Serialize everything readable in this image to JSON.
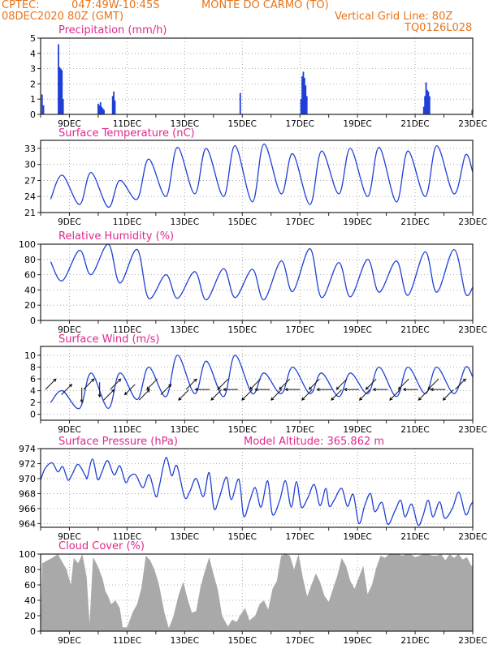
{
  "header": {
    "source": "CPTEC:",
    "coords": "047:49W-10:45S",
    "station": "MONTE DO CARMO (TO)",
    "run": "08DEC2020 80Z (GMT)",
    "grid_note": "Vertical Grid Line: 80Z",
    "code": "TQ0126L028"
  },
  "colors": {
    "header": "#e8741a",
    "titles": "#e0288c",
    "series": "#1f3fd6",
    "cloud": "#a9a9a9",
    "grid": "#999999"
  },
  "x_axis": {
    "day_labels": [
      "9DEC",
      "11DEC",
      "13DEC",
      "15DEC",
      "17DEC",
      "19DEC",
      "21DEC",
      "23DEC"
    ]
  },
  "chart_data": [
    {
      "type": "bar",
      "title": "Precipitation (mm/h)",
      "ylim": [
        0,
        5
      ],
      "yticks": [
        0,
        1,
        2,
        3,
        4,
        5
      ],
      "grid": true,
      "x_units": "days since 08DEC2020 00Z",
      "events": [
        {
          "x": [
            0.05,
            0.1
          ],
          "values": [
            1.3,
            0.6
          ]
        },
        {
          "x": [
            0.62,
            0.66,
            0.7,
            0.74,
            0.78
          ],
          "values": [
            4.6,
            3.1,
            3.0,
            2.9,
            1.0
          ]
        },
        {
          "x": [
            2.0,
            2.04,
            2.08,
            2.12,
            2.16,
            2.2
          ],
          "values": [
            0.7,
            0.6,
            0.8,
            0.5,
            0.4,
            0.3
          ]
        },
        {
          "x": [
            2.5,
            2.54,
            2.58
          ],
          "values": [
            1.2,
            1.5,
            0.9
          ]
        },
        {
          "x": [
            6.93
          ],
          "values": [
            1.4
          ]
        },
        {
          "x": [
            9.04,
            9.08,
            9.12,
            9.16,
            9.2,
            9.24
          ],
          "values": [
            1.0,
            2.5,
            2.8,
            2.4,
            1.9,
            1.2
          ]
        },
        {
          "x": [
            13.3,
            13.34,
            13.38,
            13.42,
            13.46,
            13.5
          ],
          "values": [
            0.5,
            1.2,
            2.1,
            1.6,
            1.5,
            1.2
          ]
        },
        {
          "x": [
            14.98
          ],
          "values": [
            0.3
          ]
        }
      ]
    },
    {
      "type": "line",
      "title": "Surface Temperature (nC)",
      "ylim": [
        21,
        34.5
      ],
      "yticks": [
        21,
        24,
        27,
        30,
        33
      ],
      "grid": true,
      "x_units": "days since 08DEC2020 00Z",
      "diurnal": {
        "base": 0.35,
        "peak": 0.75
      },
      "min": [
        23.5,
        22.5,
        22.0,
        23.5,
        24.0,
        24.5,
        24.0,
        23.0,
        24.5,
        22.5,
        24.5,
        24.0,
        23.0,
        24.0,
        24.5,
        24.0
      ],
      "max": [
        28.0,
        28.5,
        27.0,
        31.0,
        33.2,
        33.0,
        33.5,
        33.8,
        32.0,
        32.5,
        33.0,
        33.2,
        32.5,
        33.5,
        31.8
      ]
    },
    {
      "type": "line",
      "title": "Relative Humidity (%)",
      "ylim": [
        0,
        100
      ],
      "yticks": [
        0,
        20,
        40,
        60,
        80,
        100
      ],
      "grid": true,
      "x_units": "days since 08DEC2020 00Z",
      "diurnal": {
        "base": 0.35,
        "peak": 0.75
      },
      "max": [
        77.0,
        92.0,
        100.0,
        93.0,
        60.0,
        64.0,
        68.0,
        67.0,
        78.0,
        94.0,
        76.0,
        80.0,
        78.0,
        90.0,
        93.0,
        55.0
      ],
      "min": [
        52.0,
        60.0,
        49.0,
        29.0,
        29.0,
        27.0,
        30.0,
        27.0,
        38.0,
        30.0,
        31.0,
        37.0,
        33.0,
        37.0,
        35.0
      ]
    },
    {
      "type": "line",
      "title": "Surface Wind (m/s)",
      "ylim": [
        -1,
        11.5
      ],
      "yticks": [
        0,
        2,
        4,
        6,
        8,
        10
      ],
      "grid": true,
      "x_units": "days since 08DEC2020 00Z",
      "diurnal": {
        "base": 0.35,
        "peak": 0.75
      },
      "min": [
        2.0,
        1.0,
        1.0,
        2.5,
        3.0,
        3.5,
        3.0,
        3.5,
        3.5,
        3.5,
        3.0,
        3.5,
        3.0,
        3.5,
        3.5,
        4.0
      ],
      "max": [
        4.0,
        7.0,
        7.0,
        8.0,
        10.0,
        9.0,
        10.0,
        7.0,
        8.0,
        7.0,
        7.0,
        8.0,
        8.0,
        8.0,
        8.0
      ],
      "wind_vectors": {
        "x": [
          0.35,
          0.9,
          1.43,
          1.67,
          2.05,
          2.37,
          2.6,
          3.1,
          3.6,
          3.87,
          4.35,
          4.97,
          5.23,
          5.62,
          6.1,
          6.33,
          6.6,
          7.17,
          7.45,
          7.7,
          8.18,
          8.47,
          8.75,
          9.25,
          9.5,
          9.85,
          10.27,
          10.45,
          10.8,
          11.25,
          11.47,
          11.8,
          12.3,
          12.6,
          12.85,
          13.3,
          13.63,
          13.8,
          14.15,
          14.57
        ],
        "dir": [
          "ne",
          "ne",
          "s",
          "ne",
          "s",
          "ne",
          "ne",
          "sw",
          "ne",
          "sw",
          "ne",
          "sw",
          "ne",
          "w",
          "sw",
          "sw",
          "w",
          "sw",
          "sw",
          "w",
          "sw",
          "sw",
          "w",
          "sw",
          "sw",
          "w",
          "sw",
          "sw",
          "w",
          "sw",
          "sw",
          "w",
          "sw",
          "sw",
          "w",
          "sw",
          "sw",
          "w",
          "sw",
          "ne"
        ]
      }
    },
    {
      "type": "line",
      "title": "Surface Pressure (hPa)",
      "subtitle": "Model Altitude: 365.862 m",
      "ylim": [
        963.5,
        974
      ],
      "yticks": [
        964,
        966,
        968,
        970,
        972,
        974
      ],
      "grid": true,
      "x_units": "days since 08DEC2020 00Z",
      "series_points": [
        [
          0.0,
          969.8
        ],
        [
          0.15,
          971.3
        ],
        [
          0.4,
          972.1
        ],
        [
          0.6,
          970.9
        ],
        [
          0.77,
          971.6
        ],
        [
          0.95,
          969.8
        ],
        [
          1.1,
          970.6
        ],
        [
          1.3,
          971.9
        ],
        [
          1.55,
          970.4
        ],
        [
          1.62,
          970.1
        ],
        [
          1.8,
          972.6
        ],
        [
          1.98,
          969.9
        ],
        [
          2.12,
          970.8
        ],
        [
          2.32,
          972.4
        ],
        [
          2.55,
          970.5
        ],
        [
          2.75,
          971.7
        ],
        [
          2.95,
          969.5
        ],
        [
          3.1,
          970.3
        ],
        [
          3.3,
          970.5
        ],
        [
          3.55,
          968.8
        ],
        [
          3.77,
          970.5
        ],
        [
          4.0,
          967.6
        ],
        [
          4.12,
          969.0
        ],
        [
          4.35,
          972.8
        ],
        [
          4.55,
          970.4
        ],
        [
          4.73,
          971.7
        ],
        [
          5.0,
          967.5
        ],
        [
          5.18,
          968.3
        ],
        [
          5.4,
          970.0
        ],
        [
          5.65,
          967.6
        ],
        [
          5.85,
          970.8
        ],
        [
          6.02,
          966.0
        ],
        [
          6.2,
          967.4
        ],
        [
          6.45,
          970.2
        ],
        [
          6.62,
          967.2
        ],
        [
          6.88,
          969.9
        ],
        [
          7.05,
          965.0
        ],
        [
          7.25,
          966.9
        ],
        [
          7.45,
          968.8
        ],
        [
          7.65,
          966.2
        ],
        [
          7.88,
          969.7
        ],
        [
          8.05,
          965.2
        ],
        [
          8.3,
          967.1
        ],
        [
          8.5,
          969.7
        ],
        [
          8.7,
          966.2
        ],
        [
          8.88,
          969.6
        ],
        [
          9.05,
          966.2
        ],
        [
          9.27,
          967.4
        ],
        [
          9.5,
          969.2
        ],
        [
          9.7,
          966.4
        ],
        [
          9.9,
          968.7
        ],
        [
          10.02,
          966.3
        ],
        [
          10.2,
          967.2
        ],
        [
          10.45,
          968.7
        ],
        [
          10.65,
          966.3
        ],
        [
          10.85,
          967.9
        ],
        [
          11.05,
          964.0
        ],
        [
          11.25,
          966.4
        ],
        [
          11.45,
          968.0
        ],
        [
          11.6,
          965.6
        ],
        [
          11.85,
          966.8
        ],
        [
          12.05,
          963.9
        ],
        [
          12.3,
          965.7
        ],
        [
          12.5,
          967.1
        ],
        [
          12.65,
          964.9
        ],
        [
          12.88,
          966.6
        ],
        [
          13.1,
          963.8
        ],
        [
          13.27,
          965.0
        ],
        [
          13.45,
          967.1
        ],
        [
          13.62,
          964.9
        ],
        [
          13.85,
          966.9
        ],
        [
          14.03,
          964.7
        ],
        [
          14.3,
          966.1
        ],
        [
          14.52,
          968.2
        ],
        [
          14.75,
          965.2
        ],
        [
          14.92,
          966.4
        ],
        [
          15.0,
          966.9
        ]
      ]
    },
    {
      "type": "area",
      "title": "Cloud Cover (%)",
      "ylim": [
        0,
        100
      ],
      "yticks": [
        0,
        20,
        40,
        60,
        80,
        100
      ],
      "grid": true,
      "x_units": "days since 08DEC2020 00Z",
      "series_points": [
        [
          0.0,
          0
        ],
        [
          0.05,
          88
        ],
        [
          0.2,
          91
        ],
        [
          0.4,
          95
        ],
        [
          0.6,
          100
        ],
        [
          0.72,
          92
        ],
        [
          0.9,
          80
        ],
        [
          1.05,
          60
        ],
        [
          1.15,
          95
        ],
        [
          1.3,
          88
        ],
        [
          1.45,
          100
        ],
        [
          1.6,
          70
        ],
        [
          1.7,
          10
        ],
        [
          1.82,
          96
        ],
        [
          1.95,
          87
        ],
        [
          2.05,
          78
        ],
        [
          2.15,
          68
        ],
        [
          2.25,
          52
        ],
        [
          2.35,
          45
        ],
        [
          2.45,
          35
        ],
        [
          2.6,
          40
        ],
        [
          2.75,
          30
        ],
        [
          2.85,
          5
        ],
        [
          3.0,
          5
        ],
        [
          3.2,
          25
        ],
        [
          3.35,
          35
        ],
        [
          3.5,
          56
        ],
        [
          3.65,
          98
        ],
        [
          3.8,
          92
        ],
        [
          3.95,
          80
        ],
        [
          4.1,
          62
        ],
        [
          4.3,
          24
        ],
        [
          4.45,
          4
        ],
        [
          4.6,
          18
        ],
        [
          4.8,
          48
        ],
        [
          4.95,
          64
        ],
        [
          5.1,
          42
        ],
        [
          5.25,
          24
        ],
        [
          5.4,
          26
        ],
        [
          5.55,
          57
        ],
        [
          5.7,
          78
        ],
        [
          5.85,
          96
        ],
        [
          6.0,
          74
        ],
        [
          6.15,
          54
        ],
        [
          6.3,
          20
        ],
        [
          6.5,
          6
        ],
        [
          6.65,
          15
        ],
        [
          6.8,
          12
        ],
        [
          6.95,
          22
        ],
        [
          7.1,
          30
        ],
        [
          7.25,
          14
        ],
        [
          7.45,
          20
        ],
        [
          7.6,
          35
        ],
        [
          7.75,
          40
        ],
        [
          7.9,
          28
        ],
        [
          8.05,
          55
        ],
        [
          8.2,
          65
        ],
        [
          8.35,
          98
        ],
        [
          8.5,
          100
        ],
        [
          8.65,
          98
        ],
        [
          8.8,
          80
        ],
        [
          8.95,
          100
        ],
        [
          9.1,
          70
        ],
        [
          9.25,
          45
        ],
        [
          9.4,
          60
        ],
        [
          9.55,
          75
        ],
        [
          9.7,
          64
        ],
        [
          9.85,
          46
        ],
        [
          10.0,
          38
        ],
        [
          10.15,
          55
        ],
        [
          10.3,
          72
        ],
        [
          10.45,
          95
        ],
        [
          10.6,
          85
        ],
        [
          10.75,
          65
        ],
        [
          10.9,
          55
        ],
        [
          11.05,
          70
        ],
        [
          11.2,
          85
        ],
        [
          11.35,
          48
        ],
        [
          11.5,
          60
        ],
        [
          11.65,
          82
        ],
        [
          11.8,
          98
        ],
        [
          11.95,
          95
        ],
        [
          12.1,
          100
        ],
        [
          12.25,
          100
        ],
        [
          12.4,
          100
        ],
        [
          12.55,
          98
        ],
        [
          12.7,
          100
        ],
        [
          12.85,
          100
        ],
        [
          13.0,
          96
        ],
        [
          13.15,
          98
        ],
        [
          13.3,
          100
        ],
        [
          13.45,
          100
        ],
        [
          13.6,
          98
        ],
        [
          13.75,
          98
        ],
        [
          13.9,
          100
        ],
        [
          14.05,
          92
        ],
        [
          14.2,
          100
        ],
        [
          14.35,
          95
        ],
        [
          14.5,
          100
        ],
        [
          14.65,
          93
        ],
        [
          14.8,
          96
        ],
        [
          14.95,
          85
        ],
        [
          15.0,
          85
        ]
      ]
    }
  ]
}
